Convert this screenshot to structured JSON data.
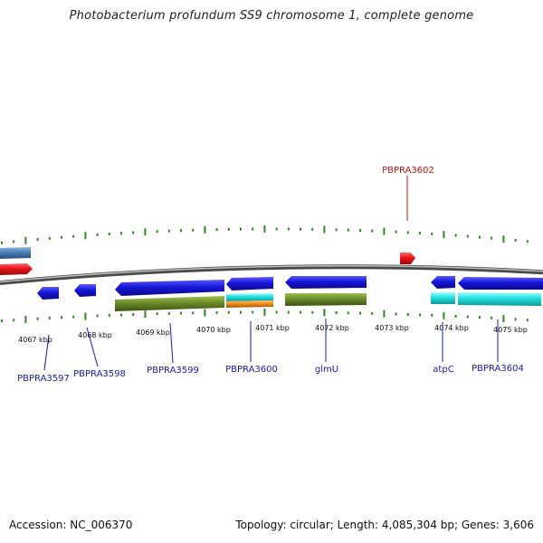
{
  "title": "Photobacterium profundum SS9 chromosome 1, complete genome",
  "footer": {
    "accession": "Accession: NC_006370",
    "topology": "Topology: circular; Length: 4,085,304 bp; Genes: 3,606"
  },
  "colors": {
    "backbone": "#7a7a7a",
    "tick": "#2f8a1f",
    "cds_blue": "#1616d8",
    "cds_red": "#e8141a",
    "cds_steel": "#4a7fb5",
    "olive": "#6b8b2a",
    "cyan": "#22dede",
    "orange": "#f08c14",
    "label_blue": "#1a1ab0",
    "label_red": "#c41414"
  },
  "kbp_labels": [
    "4067 kbp",
    "4068 kbp",
    "4069 kbp",
    "4070 kbp",
    "4071 kbp",
    "4072 kbp",
    "4073 kbp",
    "4074 kbp",
    "4075 kbp"
  ],
  "gene_labels": [
    "PBPRA3597",
    "PBPRA3598",
    "PBPRA3599",
    "PBPRA3600",
    "glmU",
    "atpC",
    "PBPRA3604",
    "PBPRA3602"
  ]
}
